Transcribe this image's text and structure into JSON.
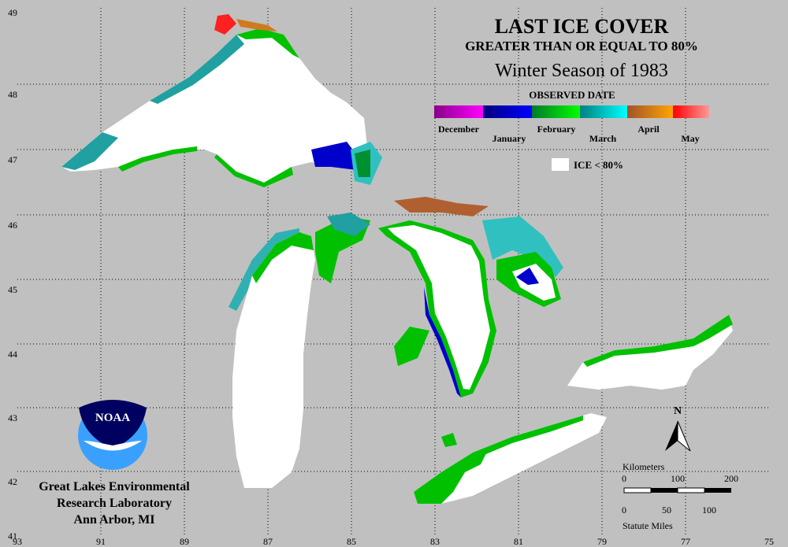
{
  "title": "LAST ICE COVER",
  "subtitle": "GREATER THAN OR EQUAL TO 80%",
  "season": "Winter Season of 1983",
  "legend": {
    "title": "OBSERVED DATE",
    "months": [
      "December",
      "January",
      "February",
      "March",
      "April",
      "May"
    ],
    "ice_label": "ICE < 80%"
  },
  "latitudes": [
    49,
    48,
    47,
    46,
    45,
    44,
    43,
    42,
    41
  ],
  "longitudes": [
    93,
    91,
    89,
    87,
    85,
    83,
    81,
    79,
    77,
    75
  ],
  "north": "N",
  "scale": {
    "km_title": "Kilometers",
    "km_ticks": [
      0,
      100,
      200
    ],
    "mi_title": "Statute Miles",
    "mi_ticks": [
      0,
      50,
      100
    ]
  },
  "logo": "NOAA",
  "credit": [
    "Great Lakes Environmental",
    "Research Laboratory",
    "Ann Arbor, MI"
  ]
}
